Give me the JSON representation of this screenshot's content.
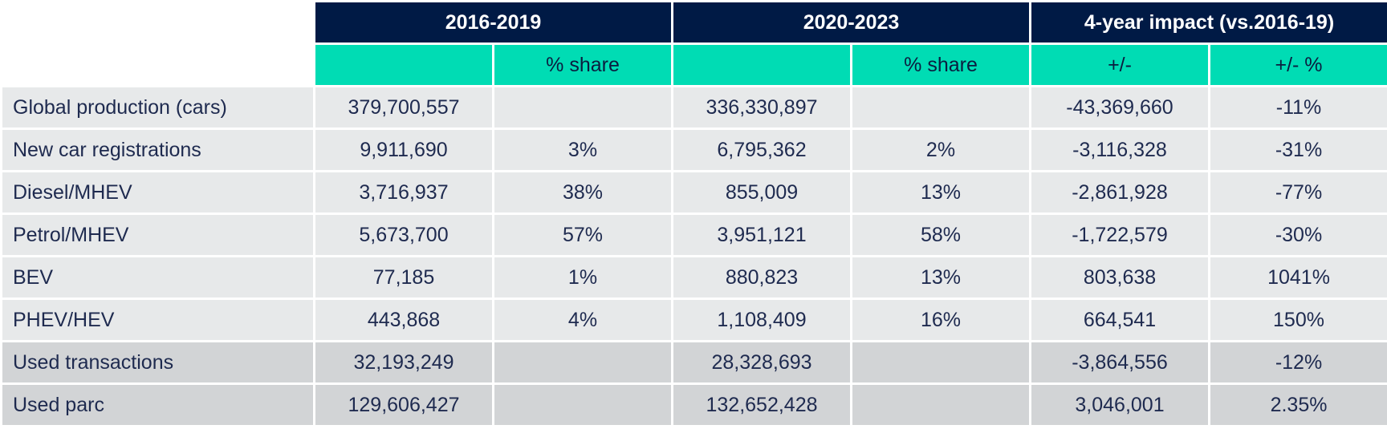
{
  "header": {
    "groups": [
      "2016-2019",
      "2020-2023",
      "4-year impact (vs.2016-19)"
    ],
    "subheaders": [
      "",
      "% share",
      "",
      "% share",
      "+/-",
      "+/- %"
    ]
  },
  "rows": [
    {
      "label": "Global production (cars)",
      "cells": [
        "379,700,557",
        "",
        "336,330,897",
        "",
        "-43,369,660",
        "-11%"
      ]
    },
    {
      "label": "New car registrations",
      "cells": [
        "9,911,690",
        "3%",
        "6,795,362",
        "2%",
        "-3,116,328",
        "-31%"
      ]
    },
    {
      "label": "Diesel/MHEV",
      "cells": [
        "3,716,937",
        "38%",
        "855,009",
        "13%",
        "-2,861,928",
        "-77%"
      ]
    },
    {
      "label": "Petrol/MHEV",
      "cells": [
        "5,673,700",
        "57%",
        "3,951,121",
        "58%",
        "-1,722,579",
        "-30%"
      ]
    },
    {
      "label": "BEV",
      "cells": [
        "77,185",
        "1%",
        "880,823",
        "13%",
        "803,638",
        "1041%"
      ]
    },
    {
      "label": "PHEV/HEV",
      "cells": [
        "443,868",
        "4%",
        "1,108,409",
        "16%",
        "664,541",
        "150%"
      ]
    },
    {
      "label": "Used transactions",
      "cells": [
        "32,193,249",
        "",
        "28,328,693",
        "",
        "-3,864,556",
        "-12%"
      ]
    },
    {
      "label": "Used parc",
      "cells": [
        "129,606,427",
        "",
        "132,652,428",
        "",
        "3,046,001",
        "2.35%"
      ]
    }
  ],
  "colors": {
    "group_header_bg": "#001a45",
    "sub_header_bg": "#00dcb4",
    "row_light_bg": "#e7e9ea",
    "row_dark_bg": "#d2d4d6",
    "text": "#1e2a4f"
  }
}
